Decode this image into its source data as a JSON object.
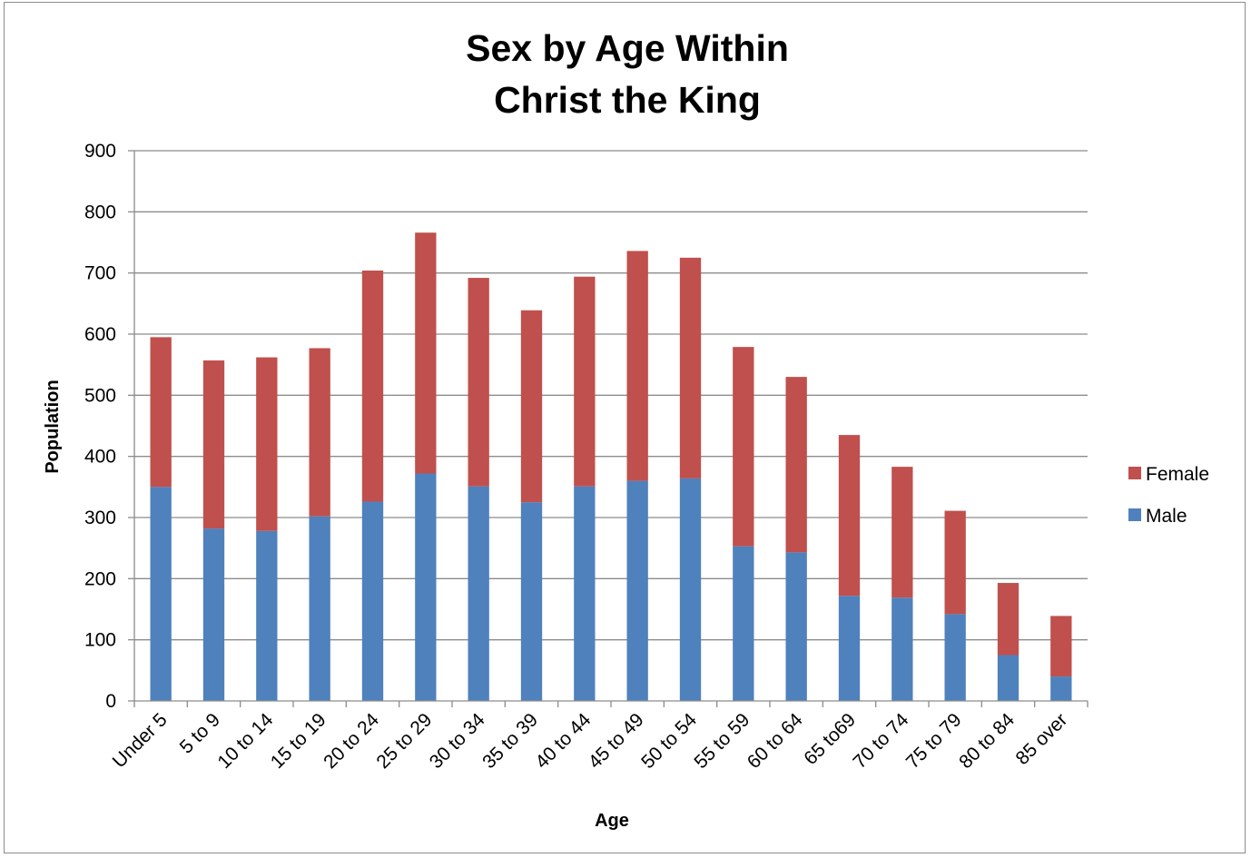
{
  "chart_data": {
    "type": "bar",
    "stacked": true,
    "title_lines": [
      "Sex by Age Within",
      "Christ the King"
    ],
    "xlabel": "Age",
    "ylabel": "Population",
    "ylim": [
      0,
      900
    ],
    "yticks": [
      0,
      100,
      200,
      300,
      400,
      500,
      600,
      700,
      800,
      900
    ],
    "grid": true,
    "legend_position": "right",
    "categories": [
      "Under 5",
      "5 to 9",
      "10 to 14",
      "15 to 19",
      "20 to 24",
      "25 to 29",
      "30 to 34",
      "35 to 39",
      "40 to 44",
      "45 to 49",
      "50 to 54",
      "55 to 59",
      "60 to 64",
      "65 to69",
      "70 to 74",
      "75 to 79",
      "80 to 84",
      "85 over"
    ],
    "series": [
      {
        "name": "Male",
        "color": "#4f81bd",
        "values": [
          350,
          282,
          278,
          302,
          326,
          372,
          351,
          325,
          351,
          360,
          364,
          253,
          243,
          172,
          169,
          142,
          75,
          40
        ]
      },
      {
        "name": "Female",
        "color": "#c0504d",
        "values": [
          245,
          275,
          284,
          275,
          378,
          394,
          341,
          314,
          343,
          376,
          361,
          326,
          287,
          263,
          214,
          169,
          118,
          99
        ]
      }
    ],
    "legend_order": [
      "Female",
      "Male"
    ]
  }
}
